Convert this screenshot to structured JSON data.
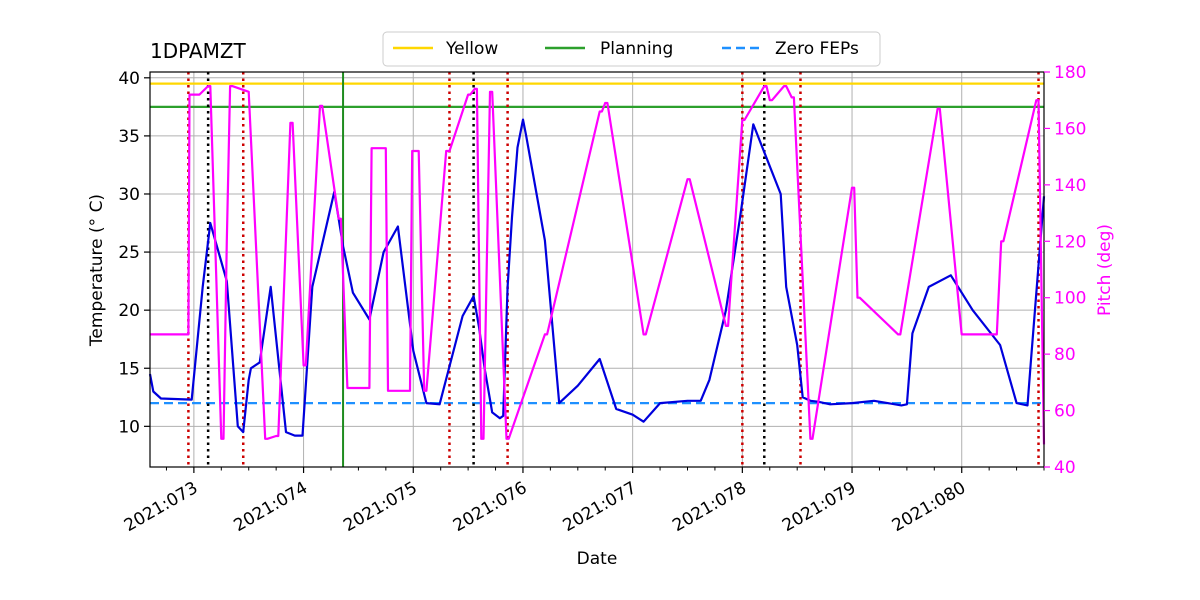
{
  "chart_data": {
    "type": "line",
    "title": "1DPAMZT",
    "xlabel": "Date",
    "ylabel_left": "Temperature ($^\\circ$C)",
    "ylabel_left_display": "Temperature (° C)",
    "ylabel_right": "Pitch (deg)",
    "xlim": [
      72.6,
      80.75
    ],
    "ylim_left": [
      6.5,
      40.5
    ],
    "ylim_right": [
      40,
      180
    ],
    "x_ticks": [
      {
        "value": 73,
        "label": "2021:073"
      },
      {
        "value": 74,
        "label": "2021:074"
      },
      {
        "value": 75,
        "label": "2021:075"
      },
      {
        "value": 76,
        "label": "2021:076"
      },
      {
        "value": 77,
        "label": "2021:077"
      },
      {
        "value": 78,
        "label": "2021:078"
      },
      {
        "value": 79,
        "label": "2021:079"
      },
      {
        "value": 80,
        "label": "2021:080"
      }
    ],
    "y_ticks_left": [
      {
        "value": 10,
        "label": "10"
      },
      {
        "value": 15,
        "label": "15"
      },
      {
        "value": 20,
        "label": "20"
      },
      {
        "value": 25,
        "label": "25"
      },
      {
        "value": 30,
        "label": "30"
      },
      {
        "value": 35,
        "label": "35"
      },
      {
        "value": 40,
        "label": "40"
      }
    ],
    "y_ticks_right": [
      {
        "value": 40,
        "label": "40"
      },
      {
        "value": 60,
        "label": "60"
      },
      {
        "value": 80,
        "label": "80"
      },
      {
        "value": 100,
        "label": "100"
      },
      {
        "value": 120,
        "label": "120"
      },
      {
        "value": 140,
        "label": "140"
      },
      {
        "value": 160,
        "label": "160"
      },
      {
        "value": 180,
        "label": "180"
      }
    ],
    "grid": true,
    "legend": {
      "placement": "top-center",
      "entries": [
        {
          "label": "Yellow",
          "color": "#FFD700",
          "style": "solid"
        },
        {
          "label": "Planning",
          "color": "#2CA02C",
          "style": "solid"
        },
        {
          "label": "Zero FEPs",
          "color": "#1E90FF",
          "style": "dashed"
        }
      ]
    },
    "hlines": [
      {
        "name": "Yellow",
        "y": 39.5,
        "color": "#FFD700",
        "style": "solid"
      },
      {
        "name": "Planning",
        "y": 37.5,
        "color": "#2CA02C",
        "style": "solid"
      },
      {
        "name": "Zero FEPs",
        "y": 12.0,
        "color": "#1E90FF",
        "style": "dashed"
      }
    ],
    "vlines": [
      {
        "x": 72.95,
        "color": "#CC0000",
        "style": "dotted"
      },
      {
        "x": 73.13,
        "color": "#000000",
        "style": "dotted"
      },
      {
        "x": 73.45,
        "color": "#CC0000",
        "style": "dotted"
      },
      {
        "x": 74.36,
        "color": "#1E8C1E",
        "style": "solid"
      },
      {
        "x": 75.33,
        "color": "#CC0000",
        "style": "dotted"
      },
      {
        "x": 75.55,
        "color": "#000000",
        "style": "dotted"
      },
      {
        "x": 75.86,
        "color": "#CC0000",
        "style": "dotted"
      },
      {
        "x": 78.0,
        "color": "#CC0000",
        "style": "dotted"
      },
      {
        "x": 78.2,
        "color": "#000000",
        "style": "dotted"
      },
      {
        "x": 78.53,
        "color": "#CC0000",
        "style": "dotted"
      },
      {
        "x": 80.7,
        "color": "#CC0000",
        "style": "dotted"
      }
    ],
    "series": [
      {
        "name": "1DPAMZT temperature",
        "axis": "left",
        "color": "#0000DD",
        "x": [
          72.6,
          72.63,
          72.7,
          72.98,
          73.08,
          73.15,
          73.3,
          73.4,
          73.45,
          73.5,
          73.52,
          73.6,
          73.7,
          73.84,
          73.92,
          73.99,
          74.08,
          74.28,
          74.36,
          74.45,
          74.6,
          74.73,
          74.86,
          75.0,
          75.12,
          75.24,
          75.45,
          75.55,
          75.6,
          75.65,
          75.72,
          75.79,
          75.82,
          75.86,
          75.9,
          75.95,
          76.0,
          76.03,
          76.2,
          76.33,
          76.5,
          76.7,
          76.85,
          77.0,
          77.1,
          77.25,
          77.5,
          77.62,
          77.7,
          77.85,
          77.98,
          78.1,
          78.35,
          78.4,
          78.5,
          78.55,
          78.62,
          78.7,
          78.8,
          79.0,
          79.2,
          79.45,
          79.5,
          79.55,
          79.7,
          79.9,
          80.1,
          80.35,
          80.5,
          80.6,
          80.63,
          80.75
        ],
        "y": [
          14.5,
          13.0,
          12.4,
          12.3,
          22.0,
          27.5,
          22.5,
          10.0,
          9.5,
          14.0,
          15.0,
          15.5,
          22.0,
          9.5,
          9.2,
          9.2,
          22.0,
          30.2,
          25.5,
          21.5,
          19.2,
          25.0,
          27.2,
          16.5,
          12.0,
          11.9,
          19.5,
          21.2,
          18.5,
          15.0,
          11.2,
          10.7,
          10.9,
          22.0,
          28.0,
          34.0,
          36.4,
          35.0,
          26.0,
          12.0,
          13.5,
          15.8,
          11.5,
          11.0,
          10.4,
          12.0,
          12.2,
          12.2,
          14.0,
          20.0,
          28.0,
          36.0,
          30.0,
          22.0,
          17.0,
          12.5,
          12.2,
          12.1,
          11.9,
          12.0,
          12.2,
          11.8,
          11.9,
          18.0,
          22.0,
          23.0,
          20.0,
          17.0,
          12.0,
          11.8,
          15.5,
          29.8
        ]
      },
      {
        "name": "Pitch",
        "axis": "right",
        "color": "#FF00FF",
        "x": [
          72.6,
          72.95,
          72.96,
          73.05,
          73.13,
          73.15,
          73.25,
          73.27,
          73.3,
          73.33,
          73.35,
          73.5,
          73.65,
          73.67,
          73.75,
          73.77,
          73.88,
          73.9,
          74.0,
          74.02,
          74.15,
          74.17,
          74.32,
          74.34,
          74.4,
          74.6,
          74.62,
          74.75,
          74.77,
          74.97,
          74.99,
          75.05,
          75.1,
          75.12,
          75.3,
          75.33,
          75.5,
          75.52,
          75.56,
          75.58,
          75.62,
          75.64,
          75.7,
          75.72,
          75.85,
          75.87,
          76.2,
          76.22,
          76.7,
          76.72,
          76.75,
          76.77,
          77.1,
          77.12,
          77.5,
          77.52,
          77.85,
          77.87,
          78.0,
          78.02,
          78.2,
          78.22,
          78.25,
          78.27,
          78.38,
          78.4,
          78.45,
          78.47,
          78.62,
          78.64,
          79.0,
          79.02,
          79.05,
          79.07,
          79.42,
          79.44,
          79.78,
          79.8,
          80.0,
          80.02,
          80.3,
          80.32,
          80.36,
          80.38,
          80.68,
          80.7,
          80.75
        ],
        "y": [
          87,
          87,
          172,
          172,
          175,
          175,
          50,
          50,
          120,
          175,
          175,
          173,
          50,
          50,
          51,
          51,
          162,
          162,
          76,
          76,
          168,
          168,
          128,
          128,
          68,
          68,
          153,
          153,
          67,
          67,
          152,
          152,
          67,
          67,
          152,
          152,
          172,
          172,
          174,
          174,
          50,
          50,
          173,
          173,
          50,
          50,
          87,
          87,
          166,
          166,
          169,
          169,
          87,
          87,
          142,
          142,
          90,
          90,
          163,
          163,
          175,
          175,
          170,
          170,
          175,
          175,
          171,
          171,
          50,
          50,
          139,
          139,
          100,
          100,
          87,
          87,
          167,
          167,
          87,
          87,
          87,
          87,
          120,
          120,
          170,
          170,
          48
        ]
      }
    ]
  }
}
